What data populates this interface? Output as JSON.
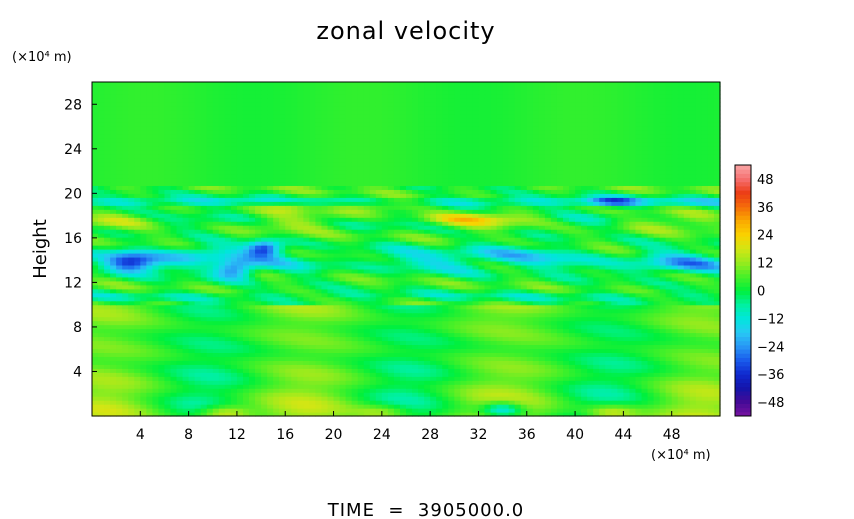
{
  "chart_data": {
    "type": "heatmap",
    "title": "zonal velocity",
    "xlabel": "",
    "ylabel": "Height",
    "x_unit": "(×10⁴ m)",
    "y_unit": "(×10⁴ m)",
    "xlim": [
      0,
      52
    ],
    "ylim": [
      0,
      30
    ],
    "x_ticks": [
      4,
      8,
      12,
      16,
      20,
      24,
      28,
      32,
      36,
      40,
      44,
      48
    ],
    "y_ticks": [
      4,
      8,
      12,
      16,
      20,
      24,
      28
    ],
    "grid": false,
    "colorbar": {
      "ticks": [
        48,
        36,
        24,
        12,
        0,
        -12,
        -24,
        -36,
        -48
      ],
      "range": [
        -54,
        54
      ],
      "placement": "right"
    },
    "field_description": {
      "upper_layer_above_20": 3,
      "mid_band_10_to_20": [
        -40,
        26
      ],
      "lower_layer_below_10": [
        -12,
        24
      ]
    },
    "footer": "TIME  =  3905000.0"
  }
}
